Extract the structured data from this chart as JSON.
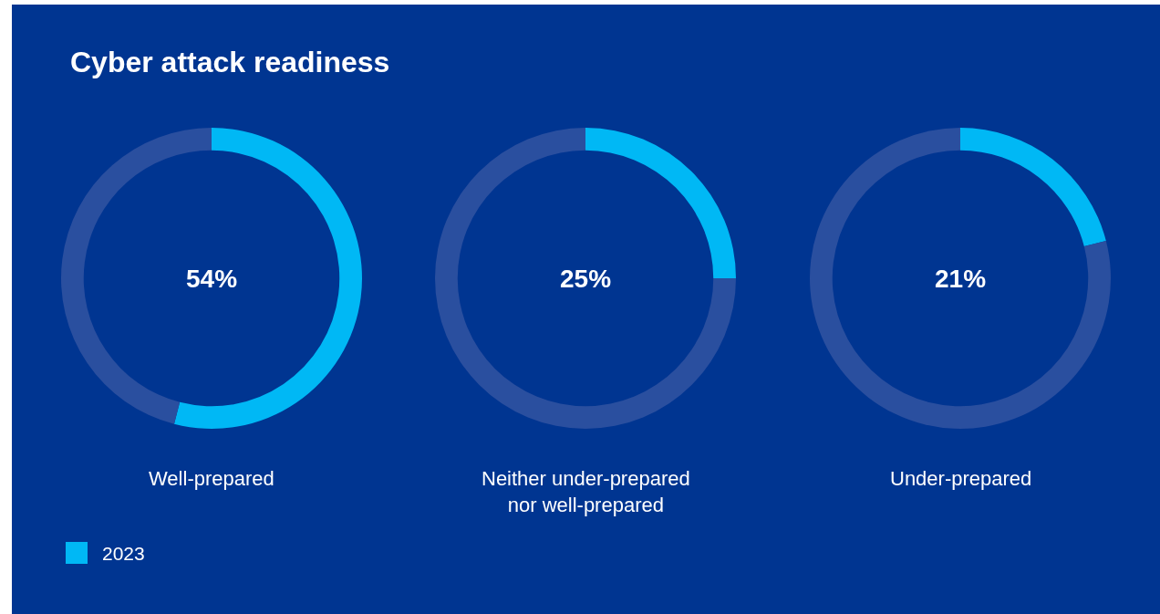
{
  "chart_data": [
    {
      "type": "donut",
      "title": "Cyber attack readiness",
      "xlabel": "Well-prepared",
      "categories": [
        "2023",
        null
      ],
      "values": [
        54,
        46
      ],
      "colors": [
        "#00b8f5",
        "#2a4f9f"
      ],
      "annotations": [
        "54%"
      ],
      "legend": "bottom left"
    },
    {
      "type": "donut",
      "xlabel": "Neither under-prepared\nnor well-prepared",
      "categories": [
        null,
        null
      ],
      "values": [
        25,
        75
      ],
      "colors": [
        "#00b8f5",
        "#2a4f9f"
      ],
      "annotations": [
        "25%"
      ]
    },
    {
      "type": "donut",
      "xlabel": "Under-prepared",
      "categories": [
        null,
        null
      ],
      "values": [
        21,
        79
      ],
      "colors": [
        "#00b8f5",
        "#2a4f9f"
      ],
      "annotations": [
        "21%"
      ]
    }
  ]
}
